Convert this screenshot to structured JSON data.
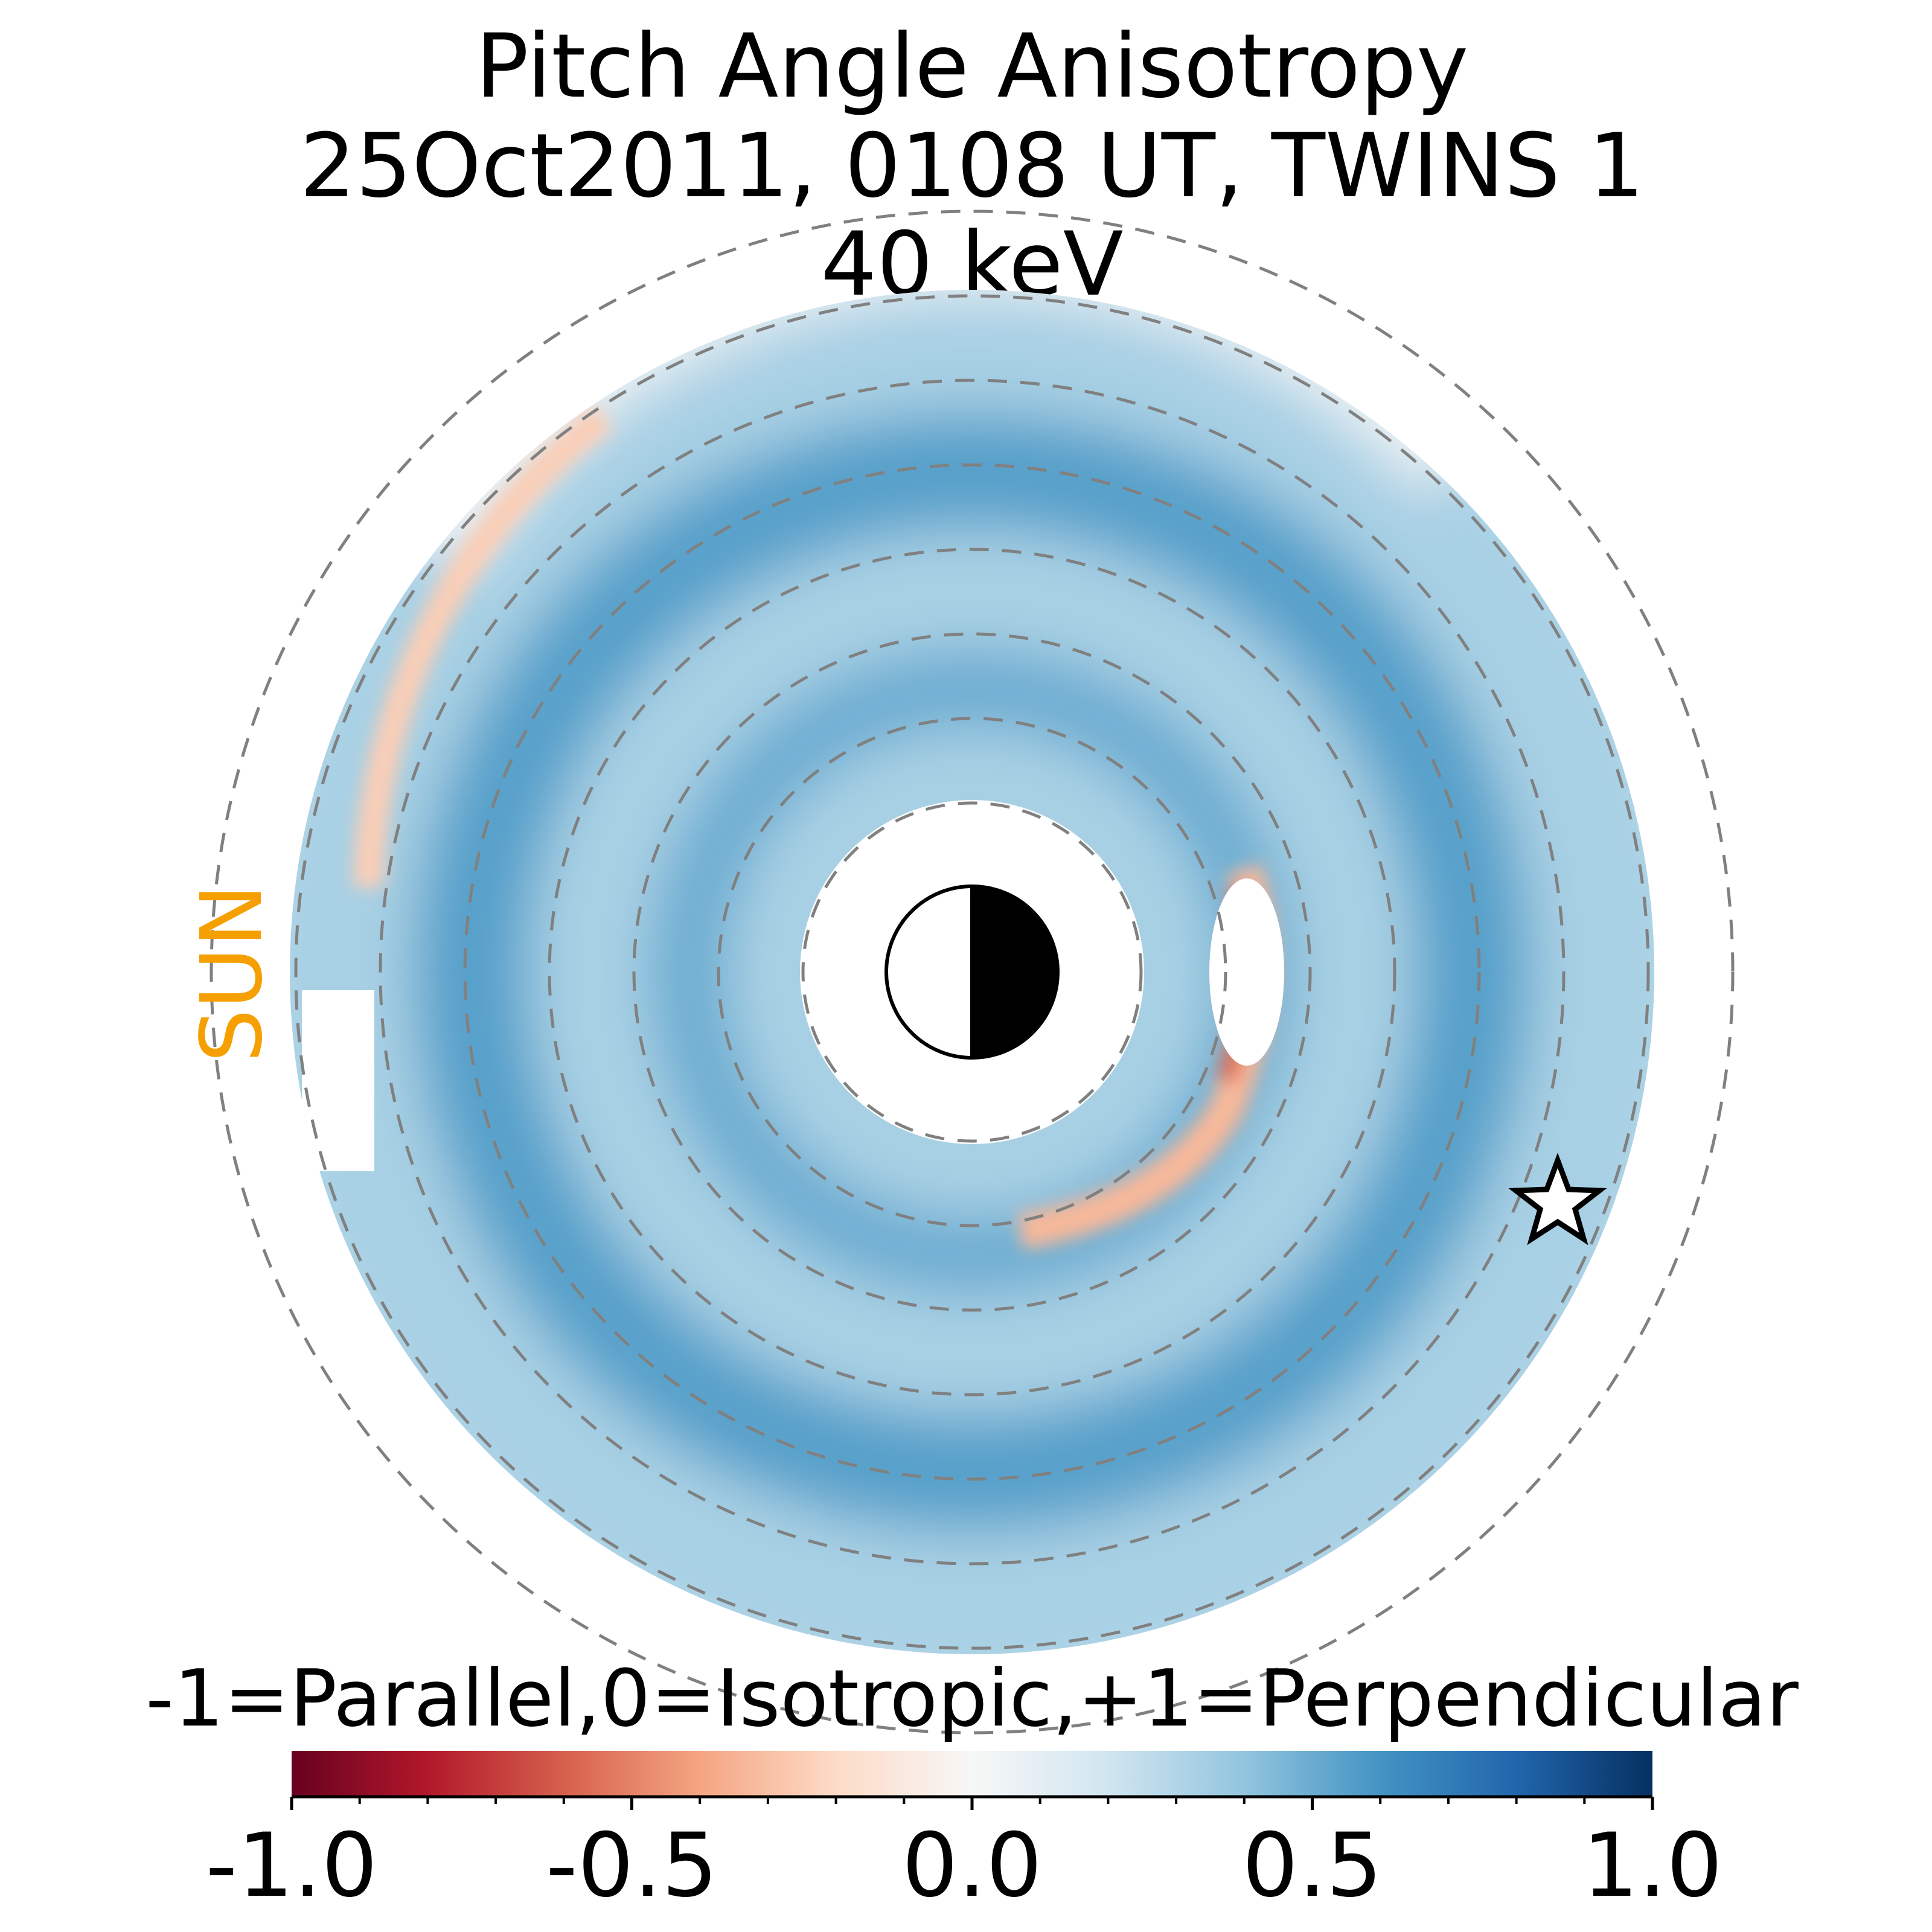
{
  "chart_data": {
    "type": "heatmap",
    "projection": "polar equatorial map centered on Earth",
    "title_lines": [
      "Pitch Angle Anisotropy",
      "25Oct2011, 0108 UT,  TWINS 1",
      "40 keV"
    ],
    "sun_label": "SUN",
    "sun_label_color": "#F5A000",
    "sun_direction": "left",
    "spacecraft_marker": "star",
    "colormap": {
      "name": "RdBu",
      "range": [
        -1.0,
        1.0
      ],
      "stops": [
        "#67001f",
        "#b2182b",
        "#d6604d",
        "#f4a582",
        "#fddbc7",
        "#f7f7f7",
        "#d1e5f0",
        "#92c5de",
        "#4393c3",
        "#2166ac",
        "#053061"
      ]
    },
    "colorbar": {
      "label": "-1=Parallel,0=Isotropic,+1=Perpendicular",
      "ticks": [
        -1.0,
        -0.5,
        0.0,
        0.5,
        1.0
      ],
      "tick_labels": [
        "-1.0",
        "-0.5",
        "0.0",
        "0.5",
        "1.0"
      ],
      "minor_step": 0.1
    },
    "radial_grid_circles": 8,
    "values": {
      "background_ring": 0.33,
      "bright_band": 0.55,
      "inner_band": 0.5,
      "dusk_edge_anomaly": -0.25,
      "inner_dusk_anomaly": -0.55,
      "north_rim": 0.05
    }
  }
}
